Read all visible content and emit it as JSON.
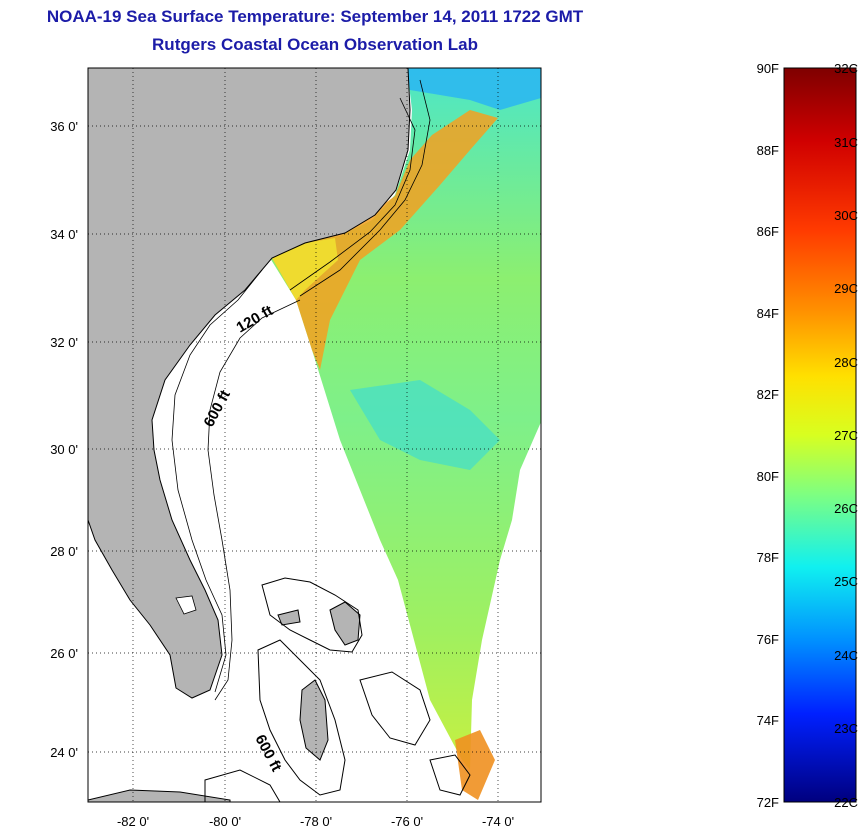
{
  "header": {
    "title": "NOAA-19 Sea Surface Temperature:  September 14, 2011 1722 GMT",
    "subtitle": "Rutgers Coastal Ocean Observation Lab"
  },
  "map": {
    "lat_labels": [
      "36 0'",
      "34 0'",
      "32 0'",
      "30 0'",
      "28 0'",
      "26 0'",
      "24 0'"
    ],
    "lon_labels": [
      "-82 0'",
      "-80 0'",
      "-78 0'",
      "-76 0'",
      "-74 0'"
    ],
    "contour_labels": [
      "120 ft",
      "600 ft",
      "600 ft"
    ],
    "land_color": "#b4b4b4"
  },
  "colorbar": {
    "fahrenheit_labels": [
      "90F",
      "88F",
      "86F",
      "84F",
      "82F",
      "80F",
      "78F",
      "76F",
      "74F",
      "72F"
    ],
    "celsius_labels": [
      "32C",
      "31C",
      "30C",
      "29C",
      "28C",
      "27C",
      "26C",
      "25C",
      "24C",
      "23C",
      "22C"
    ],
    "colors": [
      "#800000",
      "#ff0000",
      "#ff8000",
      "#ffff00",
      "#80ff80",
      "#00ffff",
      "#0080ff",
      "#0000ff",
      "#000080"
    ]
  }
}
